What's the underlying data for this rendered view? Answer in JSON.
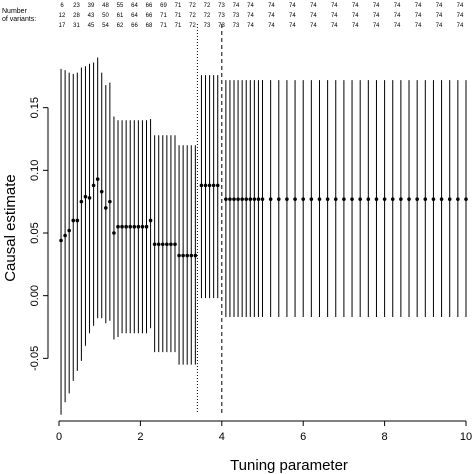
{
  "chart_data": {
    "type": "scatter",
    "xlabel": "Tuning parameter",
    "ylabel": "Causal estimate",
    "xlim": [
      0,
      10
    ],
    "ylim": [
      -0.1,
      0.2
    ],
    "x_ticks": [
      0,
      2,
      4,
      6,
      8,
      10
    ],
    "y_ticks": [
      -0.05,
      0.0,
      0.05,
      0.1,
      0.15
    ],
    "y_tick_labels": [
      "-0.05",
      "0.00",
      "0.05",
      "0.10",
      "0.15"
    ],
    "vlines": [
      {
        "x": 3.4,
        "style": "dotted"
      },
      {
        "x": 4.0,
        "style": "dashed"
      }
    ],
    "variant_counts": {
      "title_line1": "Number",
      "title_line2": "of variants:",
      "row1": [
        "6",
        "23",
        "39",
        "48",
        "55",
        "64",
        "66",
        "69",
        "71",
        "72",
        "72",
        "73",
        "74",
        "74",
        "74",
        "74",
        "74",
        "74",
        "74",
        "74",
        "74",
        "74",
        "74",
        "74"
      ],
      "row2": [
        "12",
        "28",
        "43",
        "50",
        "61",
        "64",
        "66",
        "71",
        "71",
        "72",
        "72",
        "73",
        "73",
        "74",
        "74",
        "74",
        "74",
        "74",
        "74",
        "74",
        "74",
        "74",
        "74",
        "74"
      ],
      "row3": [
        "17",
        "31",
        "45",
        "54",
        "62",
        "66",
        "68",
        "71",
        "71",
        "72",
        "73",
        "73",
        "73",
        "74",
        "74",
        "74",
        "74",
        "74",
        "74",
        "74",
        "74",
        "74",
        "74",
        "74"
      ]
    },
    "points": [
      {
        "x": 0.05,
        "y": 0.044,
        "lo": -0.095,
        "hi": 0.181
      },
      {
        "x": 0.15,
        "y": 0.048,
        "lo": -0.085,
        "hi": 0.18
      },
      {
        "x": 0.25,
        "y": 0.052,
        "lo": -0.078,
        "hi": 0.178
      },
      {
        "x": 0.35,
        "y": 0.06,
        "lo": -0.068,
        "hi": 0.177
      },
      {
        "x": 0.45,
        "y": 0.06,
        "lo": -0.06,
        "hi": 0.178
      },
      {
        "x": 0.55,
        "y": 0.075,
        "lo": -0.052,
        "hi": 0.182
      },
      {
        "x": 0.65,
        "y": 0.079,
        "lo": -0.04,
        "hi": 0.183
      },
      {
        "x": 0.75,
        "y": 0.078,
        "lo": -0.03,
        "hi": 0.185
      },
      {
        "x": 0.85,
        "y": 0.088,
        "lo": -0.024,
        "hi": 0.186
      },
      {
        "x": 0.95,
        "y": 0.093,
        "lo": -0.018,
        "hi": 0.19
      },
      {
        "x": 1.05,
        "y": 0.083,
        "lo": -0.018,
        "hi": 0.178
      },
      {
        "x": 1.15,
        "y": 0.07,
        "lo": -0.022,
        "hi": 0.168
      },
      {
        "x": 1.25,
        "y": 0.075,
        "lo": -0.02,
        "hi": 0.17
      },
      {
        "x": 1.35,
        "y": 0.05,
        "lo": -0.035,
        "hi": 0.143
      },
      {
        "x": 1.45,
        "y": 0.055,
        "lo": -0.033,
        "hi": 0.14
      },
      {
        "x": 1.55,
        "y": 0.055,
        "lo": -0.03,
        "hi": 0.14
      },
      {
        "x": 1.65,
        "y": 0.055,
        "lo": -0.03,
        "hi": 0.14
      },
      {
        "x": 1.75,
        "y": 0.055,
        "lo": -0.03,
        "hi": 0.14
      },
      {
        "x": 1.85,
        "y": 0.055,
        "lo": -0.03,
        "hi": 0.14
      },
      {
        "x": 1.95,
        "y": 0.055,
        "lo": -0.03,
        "hi": 0.14
      },
      {
        "x": 2.05,
        "y": 0.055,
        "lo": -0.03,
        "hi": 0.14
      },
      {
        "x": 2.15,
        "y": 0.055,
        "lo": -0.03,
        "hi": 0.14
      },
      {
        "x": 2.25,
        "y": 0.06,
        "lo": -0.026,
        "hi": 0.141
      },
      {
        "x": 2.35,
        "y": 0.041,
        "lo": -0.045,
        "hi": 0.128
      },
      {
        "x": 2.45,
        "y": 0.041,
        "lo": -0.045,
        "hi": 0.128
      },
      {
        "x": 2.55,
        "y": 0.041,
        "lo": -0.045,
        "hi": 0.128
      },
      {
        "x": 2.65,
        "y": 0.041,
        "lo": -0.045,
        "hi": 0.128
      },
      {
        "x": 2.75,
        "y": 0.041,
        "lo": -0.045,
        "hi": 0.128
      },
      {
        "x": 2.85,
        "y": 0.041,
        "lo": -0.045,
        "hi": 0.128
      },
      {
        "x": 2.95,
        "y": 0.032,
        "lo": -0.055,
        "hi": 0.12
      },
      {
        "x": 3.05,
        "y": 0.032,
        "lo": -0.055,
        "hi": 0.12
      },
      {
        "x": 3.15,
        "y": 0.032,
        "lo": -0.055,
        "hi": 0.12
      },
      {
        "x": 3.25,
        "y": 0.032,
        "lo": -0.055,
        "hi": 0.12
      },
      {
        "x": 3.35,
        "y": 0.032,
        "lo": -0.055,
        "hi": 0.12
      },
      {
        "x": 3.5,
        "y": 0.088,
        "lo": -0.002,
        "hi": 0.176
      },
      {
        "x": 3.6,
        "y": 0.088,
        "lo": -0.002,
        "hi": 0.176
      },
      {
        "x": 3.7,
        "y": 0.088,
        "lo": -0.002,
        "hi": 0.176
      },
      {
        "x": 3.8,
        "y": 0.088,
        "lo": -0.002,
        "hi": 0.176
      },
      {
        "x": 3.9,
        "y": 0.088,
        "lo": -0.002,
        "hi": 0.176
      },
      {
        "x": 4.1,
        "y": 0.077,
        "lo": -0.017,
        "hi": 0.172
      },
      {
        "x": 4.2,
        "y": 0.077,
        "lo": -0.017,
        "hi": 0.172
      },
      {
        "x": 4.3,
        "y": 0.077,
        "lo": -0.017,
        "hi": 0.172
      },
      {
        "x": 4.4,
        "y": 0.077,
        "lo": -0.017,
        "hi": 0.172
      },
      {
        "x": 4.5,
        "y": 0.077,
        "lo": -0.017,
        "hi": 0.172
      },
      {
        "x": 4.6,
        "y": 0.077,
        "lo": -0.017,
        "hi": 0.172
      },
      {
        "x": 4.7,
        "y": 0.077,
        "lo": -0.017,
        "hi": 0.172
      },
      {
        "x": 4.8,
        "y": 0.077,
        "lo": -0.017,
        "hi": 0.172
      },
      {
        "x": 4.9,
        "y": 0.077,
        "lo": -0.017,
        "hi": 0.172
      },
      {
        "x": 5.0,
        "y": 0.077,
        "lo": -0.017,
        "hi": 0.172
      },
      {
        "x": 5.2,
        "y": 0.077,
        "lo": -0.017,
        "hi": 0.172
      },
      {
        "x": 5.4,
        "y": 0.077,
        "lo": -0.017,
        "hi": 0.172
      },
      {
        "x": 5.6,
        "y": 0.077,
        "lo": -0.017,
        "hi": 0.172
      },
      {
        "x": 5.8,
        "y": 0.077,
        "lo": -0.017,
        "hi": 0.172
      },
      {
        "x": 6.0,
        "y": 0.077,
        "lo": -0.017,
        "hi": 0.172
      },
      {
        "x": 6.2,
        "y": 0.077,
        "lo": -0.017,
        "hi": 0.172
      },
      {
        "x": 6.4,
        "y": 0.077,
        "lo": -0.017,
        "hi": 0.172
      },
      {
        "x": 6.6,
        "y": 0.077,
        "lo": -0.017,
        "hi": 0.172
      },
      {
        "x": 6.8,
        "y": 0.077,
        "lo": -0.017,
        "hi": 0.172
      },
      {
        "x": 7.0,
        "y": 0.077,
        "lo": -0.017,
        "hi": 0.172
      },
      {
        "x": 7.2,
        "y": 0.077,
        "lo": -0.017,
        "hi": 0.172
      },
      {
        "x": 7.4,
        "y": 0.077,
        "lo": -0.017,
        "hi": 0.172
      },
      {
        "x": 7.6,
        "y": 0.077,
        "lo": -0.017,
        "hi": 0.172
      },
      {
        "x": 7.8,
        "y": 0.077,
        "lo": -0.017,
        "hi": 0.172
      },
      {
        "x": 8.0,
        "y": 0.077,
        "lo": -0.017,
        "hi": 0.172
      },
      {
        "x": 8.2,
        "y": 0.077,
        "lo": -0.017,
        "hi": 0.172
      },
      {
        "x": 8.4,
        "y": 0.077,
        "lo": -0.017,
        "hi": 0.172
      },
      {
        "x": 8.6,
        "y": 0.077,
        "lo": -0.017,
        "hi": 0.172
      },
      {
        "x": 8.8,
        "y": 0.077,
        "lo": -0.017,
        "hi": 0.172
      },
      {
        "x": 9.0,
        "y": 0.077,
        "lo": -0.017,
        "hi": 0.172
      },
      {
        "x": 9.2,
        "y": 0.077,
        "lo": -0.017,
        "hi": 0.172
      },
      {
        "x": 9.4,
        "y": 0.077,
        "lo": -0.017,
        "hi": 0.172
      },
      {
        "x": 9.6,
        "y": 0.077,
        "lo": -0.017,
        "hi": 0.172
      },
      {
        "x": 9.8,
        "y": 0.077,
        "lo": -0.017,
        "hi": 0.172
      },
      {
        "x": 10.0,
        "y": 0.077,
        "lo": -0.017,
        "hi": 0.172
      }
    ]
  }
}
